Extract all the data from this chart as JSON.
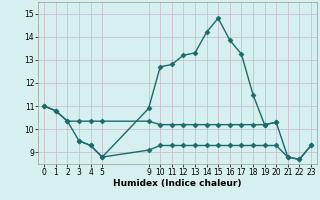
{
  "xlabel": "Humidex (Indice chaleur)",
  "background_color": "#d6efef",
  "grid_color": "#c8b8c8",
  "line_color": "#1a6b6b",
  "markersize": 2.5,
  "linewidth": 1.0,
  "xlim": [
    -0.5,
    23.5
  ],
  "ylim": [
    8.5,
    15.5
  ],
  "yticks": [
    9,
    10,
    11,
    12,
    13,
    14,
    15
  ],
  "xticks": [
    0,
    1,
    2,
    3,
    4,
    5,
    9,
    10,
    11,
    12,
    13,
    14,
    15,
    16,
    17,
    18,
    19,
    20,
    21,
    22,
    23
  ],
  "x_main": [
    0,
    1,
    2,
    3,
    4,
    5,
    9,
    10,
    11,
    12,
    13,
    14,
    15,
    16,
    17,
    18,
    19,
    20,
    21,
    22,
    23
  ],
  "y_main": [
    11.0,
    10.8,
    10.35,
    9.5,
    9.3,
    8.8,
    10.9,
    12.7,
    12.8,
    13.2,
    13.3,
    14.2,
    14.8,
    13.85,
    13.25,
    11.5,
    10.2,
    10.3,
    8.8,
    8.7,
    9.3
  ],
  "x_mid": [
    0,
    1,
    2,
    3,
    4,
    5,
    9,
    10,
    11,
    12,
    13,
    14,
    15,
    16,
    17,
    18,
    19,
    20
  ],
  "y_mid": [
    11.0,
    10.8,
    10.35,
    10.35,
    10.35,
    10.35,
    10.35,
    10.2,
    10.2,
    10.2,
    10.2,
    10.2,
    10.2,
    10.2,
    10.2,
    10.2,
    10.2,
    10.3
  ],
  "x_low": [
    3,
    4,
    5,
    9,
    10,
    11,
    12,
    13,
    14,
    15,
    16,
    17,
    18,
    19,
    20,
    21,
    22,
    23
  ],
  "y_low": [
    9.5,
    9.3,
    8.8,
    9.1,
    9.3,
    9.3,
    9.3,
    9.3,
    9.3,
    9.3,
    9.3,
    9.3,
    9.3,
    9.3,
    9.3,
    8.8,
    8.7,
    9.3
  ]
}
